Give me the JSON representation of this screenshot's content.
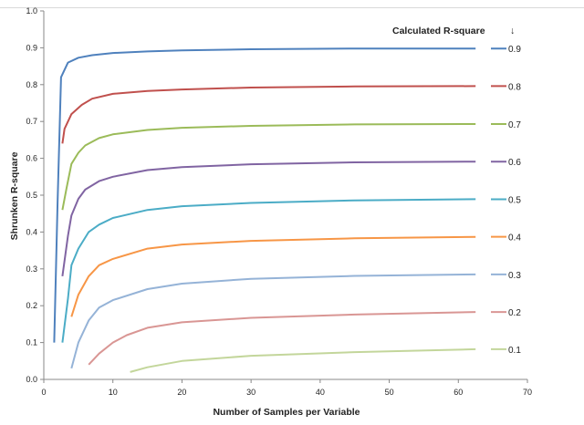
{
  "chart_data": {
    "type": "line",
    "title": "",
    "xlabel": "Number of Samples per Variable",
    "ylabel": "Shrunken R-square",
    "xlim": [
      0,
      70
    ],
    "ylim": [
      0,
      1.0
    ],
    "x_ticks": [
      0,
      10,
      20,
      30,
      40,
      50,
      60,
      70
    ],
    "y_ticks": [
      "0.0",
      "0.1",
      "0.2",
      "0.3",
      "0.4",
      "0.5",
      "0.6",
      "0.7",
      "0.8",
      "0.9",
      "1.0"
    ],
    "grid": false,
    "legend": {
      "title": "Calculated R-square",
      "arrow": "↓",
      "placement": "right"
    },
    "series": [
      {
        "name": "0.9",
        "color": "#4F81BD",
        "points": [
          [
            1.5,
            0.1
          ],
          [
            2,
            0.48
          ],
          [
            2.5,
            0.82
          ],
          [
            3.5,
            0.86
          ],
          [
            5,
            0.873
          ],
          [
            7,
            0.88
          ],
          [
            10,
            0.886
          ],
          [
            15,
            0.89
          ],
          [
            20,
            0.893
          ],
          [
            30,
            0.896
          ],
          [
            45,
            0.898
          ],
          [
            62.5,
            0.898
          ]
        ]
      },
      {
        "name": "0.8",
        "color": "#C0504D",
        "points": [
          [
            2.7,
            0.64
          ],
          [
            3,
            0.68
          ],
          [
            4,
            0.72
          ],
          [
            5.5,
            0.745
          ],
          [
            7,
            0.762
          ],
          [
            10,
            0.775
          ],
          [
            15,
            0.783
          ],
          [
            20,
            0.787
          ],
          [
            30,
            0.792
          ],
          [
            45,
            0.795
          ],
          [
            62.5,
            0.796
          ]
        ]
      },
      {
        "name": "0.7",
        "color": "#9BBB59",
        "points": [
          [
            2.7,
            0.46
          ],
          [
            3.3,
            0.52
          ],
          [
            4,
            0.585
          ],
          [
            5,
            0.615
          ],
          [
            6,
            0.635
          ],
          [
            8,
            0.655
          ],
          [
            10,
            0.665
          ],
          [
            15,
            0.677
          ],
          [
            20,
            0.683
          ],
          [
            30,
            0.688
          ],
          [
            45,
            0.692
          ],
          [
            62.5,
            0.693
          ]
        ]
      },
      {
        "name": "0.6",
        "color": "#8064A2",
        "points": [
          [
            2.7,
            0.28
          ],
          [
            3.5,
            0.39
          ],
          [
            4,
            0.445
          ],
          [
            5,
            0.49
          ],
          [
            6,
            0.515
          ],
          [
            8,
            0.538
          ],
          [
            10,
            0.55
          ],
          [
            15,
            0.568
          ],
          [
            20,
            0.576
          ],
          [
            30,
            0.584
          ],
          [
            45,
            0.589
          ],
          [
            62.5,
            0.591
          ]
        ]
      },
      {
        "name": "0.5",
        "color": "#4BACC6",
        "points": [
          [
            2.7,
            0.1
          ],
          [
            3.5,
            0.22
          ],
          [
            4,
            0.31
          ],
          [
            5,
            0.355
          ],
          [
            6.5,
            0.4
          ],
          [
            8,
            0.42
          ],
          [
            10,
            0.438
          ],
          [
            15,
            0.46
          ],
          [
            20,
            0.47
          ],
          [
            30,
            0.479
          ],
          [
            45,
            0.486
          ],
          [
            62.5,
            0.489
          ]
        ]
      },
      {
        "name": "0.4",
        "color": "#F79646",
        "points": [
          [
            4,
            0.17
          ],
          [
            5,
            0.23
          ],
          [
            6.5,
            0.28
          ],
          [
            8,
            0.31
          ],
          [
            10,
            0.327
          ],
          [
            15,
            0.355
          ],
          [
            20,
            0.366
          ],
          [
            30,
            0.376
          ],
          [
            45,
            0.383
          ],
          [
            62.5,
            0.387
          ]
        ]
      },
      {
        "name": "0.3",
        "color": "#95B3D7",
        "points": [
          [
            4,
            0.03
          ],
          [
            5,
            0.1
          ],
          [
            6.5,
            0.16
          ],
          [
            8,
            0.195
          ],
          [
            10,
            0.215
          ],
          [
            15,
            0.245
          ],
          [
            20,
            0.26
          ],
          [
            30,
            0.273
          ],
          [
            45,
            0.281
          ],
          [
            62.5,
            0.285
          ]
        ]
      },
      {
        "name": "0.2",
        "color": "#D99694",
        "points": [
          [
            6.5,
            0.04
          ],
          [
            8,
            0.07
          ],
          [
            10,
            0.1
          ],
          [
            12,
            0.12
          ],
          [
            15,
            0.14
          ],
          [
            20,
            0.155
          ],
          [
            30,
            0.167
          ],
          [
            45,
            0.176
          ],
          [
            62.5,
            0.183
          ]
        ]
      },
      {
        "name": "0.1",
        "color": "#C3D69B",
        "points": [
          [
            12.5,
            0.02
          ],
          [
            15,
            0.033
          ],
          [
            20,
            0.05
          ],
          [
            30,
            0.064
          ],
          [
            45,
            0.074
          ],
          [
            62.5,
            0.082
          ]
        ]
      }
    ]
  }
}
